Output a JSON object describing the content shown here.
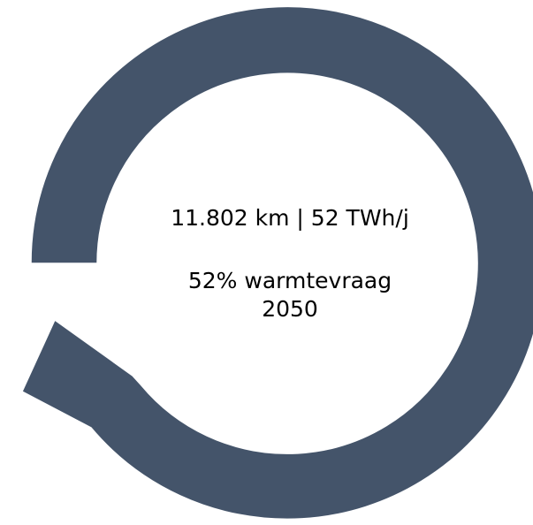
{
  "center_text": {
    "line1": "11.802 km | 52 TWh/j",
    "line2": "52% warmtevraag",
    "line3": "2050"
  }
}
